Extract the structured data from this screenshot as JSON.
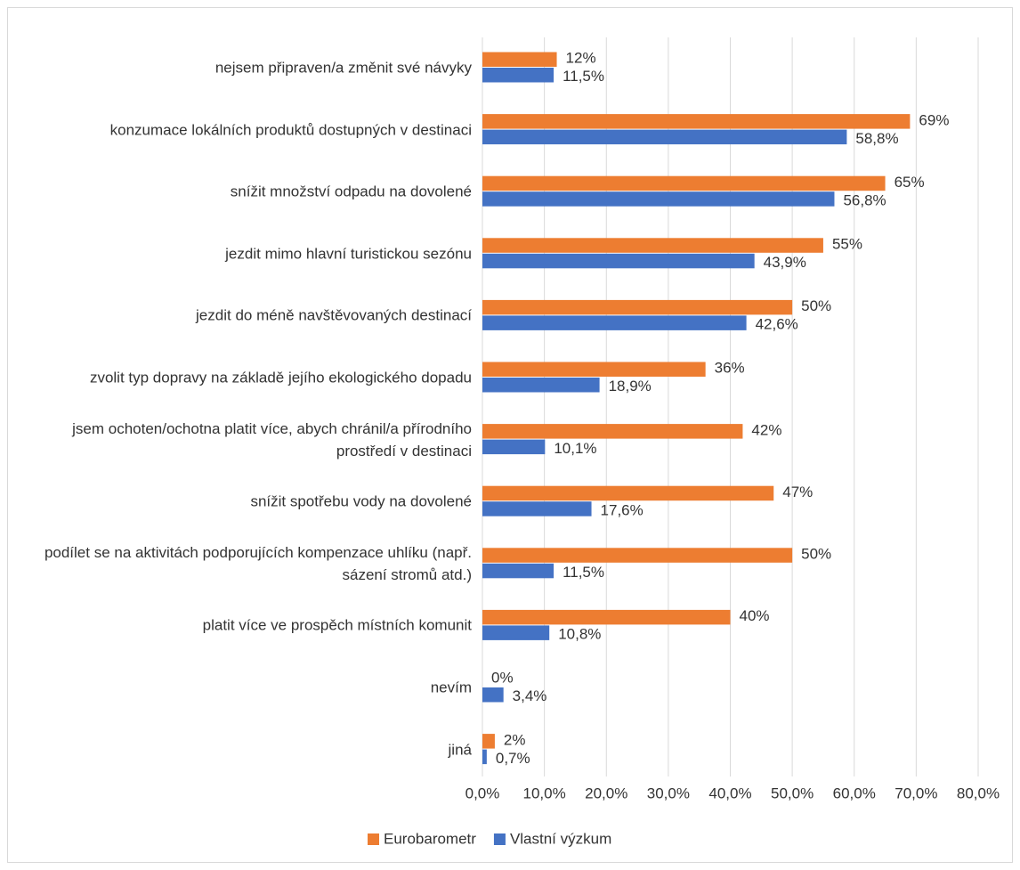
{
  "chart_data": {
    "type": "hbar",
    "categories": [
      "nejsem připraven/a změnit své návyky",
      "konzumace lokálních produktů dostupných v destinaci",
      "snížit množství odpadu na dovolené",
      "jezdit mimo hlavní turistickou sezónu",
      "jezdit do méně navštěvovaných destinací",
      "zvolit typ dopravy na základě jejího ekologického dopadu",
      "jsem ochoten/ochotna platit více, abych chránil/a přírodního prostředí v destinaci",
      "snížit spotřebu vody na dovolené",
      "podílet se na aktivitách podporujících kompenzace uhlíku (např. sázení stromů atd.)",
      "platit více ve prospěch místních komunit",
      "nevím",
      "jiná"
    ],
    "series": [
      {
        "name": "Eurobarometr",
        "color": "#ED7D31",
        "values": [
          12,
          69,
          65,
          55,
          50,
          36,
          42,
          47,
          50,
          40,
          0,
          2
        ],
        "value_labels": [
          "12%",
          "69%",
          "65%",
          "55%",
          "50%",
          "36%",
          "42%",
          "47%",
          "50%",
          "40%",
          "0%",
          "2%"
        ]
      },
      {
        "name": "Vlastní výzkum",
        "color": "#4472C4",
        "values": [
          11.5,
          58.8,
          56.8,
          43.9,
          42.6,
          18.9,
          10.1,
          17.6,
          11.5,
          10.8,
          3.4,
          0.7
        ],
        "value_labels": [
          "11,5%",
          "58,8%",
          "56,8%",
          "43,9%",
          "42,6%",
          "18,9%",
          "10,1%",
          "17,6%",
          "11,5%",
          "10,8%",
          "3,4%",
          "0,7%"
        ]
      }
    ],
    "xlim": [
      0,
      80
    ],
    "xticks": [
      {
        "value": 0,
        "label": "0,0%"
      },
      {
        "value": 10,
        "label": "10,0%"
      },
      {
        "value": 20,
        "label": "20,0%"
      },
      {
        "value": 30,
        "label": "30,0%"
      },
      {
        "value": 40,
        "label": "40,0%"
      },
      {
        "value": 50,
        "label": "50,0%"
      },
      {
        "value": 60,
        "label": "60,0%"
      },
      {
        "value": 70,
        "label": "70,0%"
      },
      {
        "value": 80,
        "label": "80,0%"
      }
    ],
    "grid": true,
    "legend": "bottom"
  }
}
